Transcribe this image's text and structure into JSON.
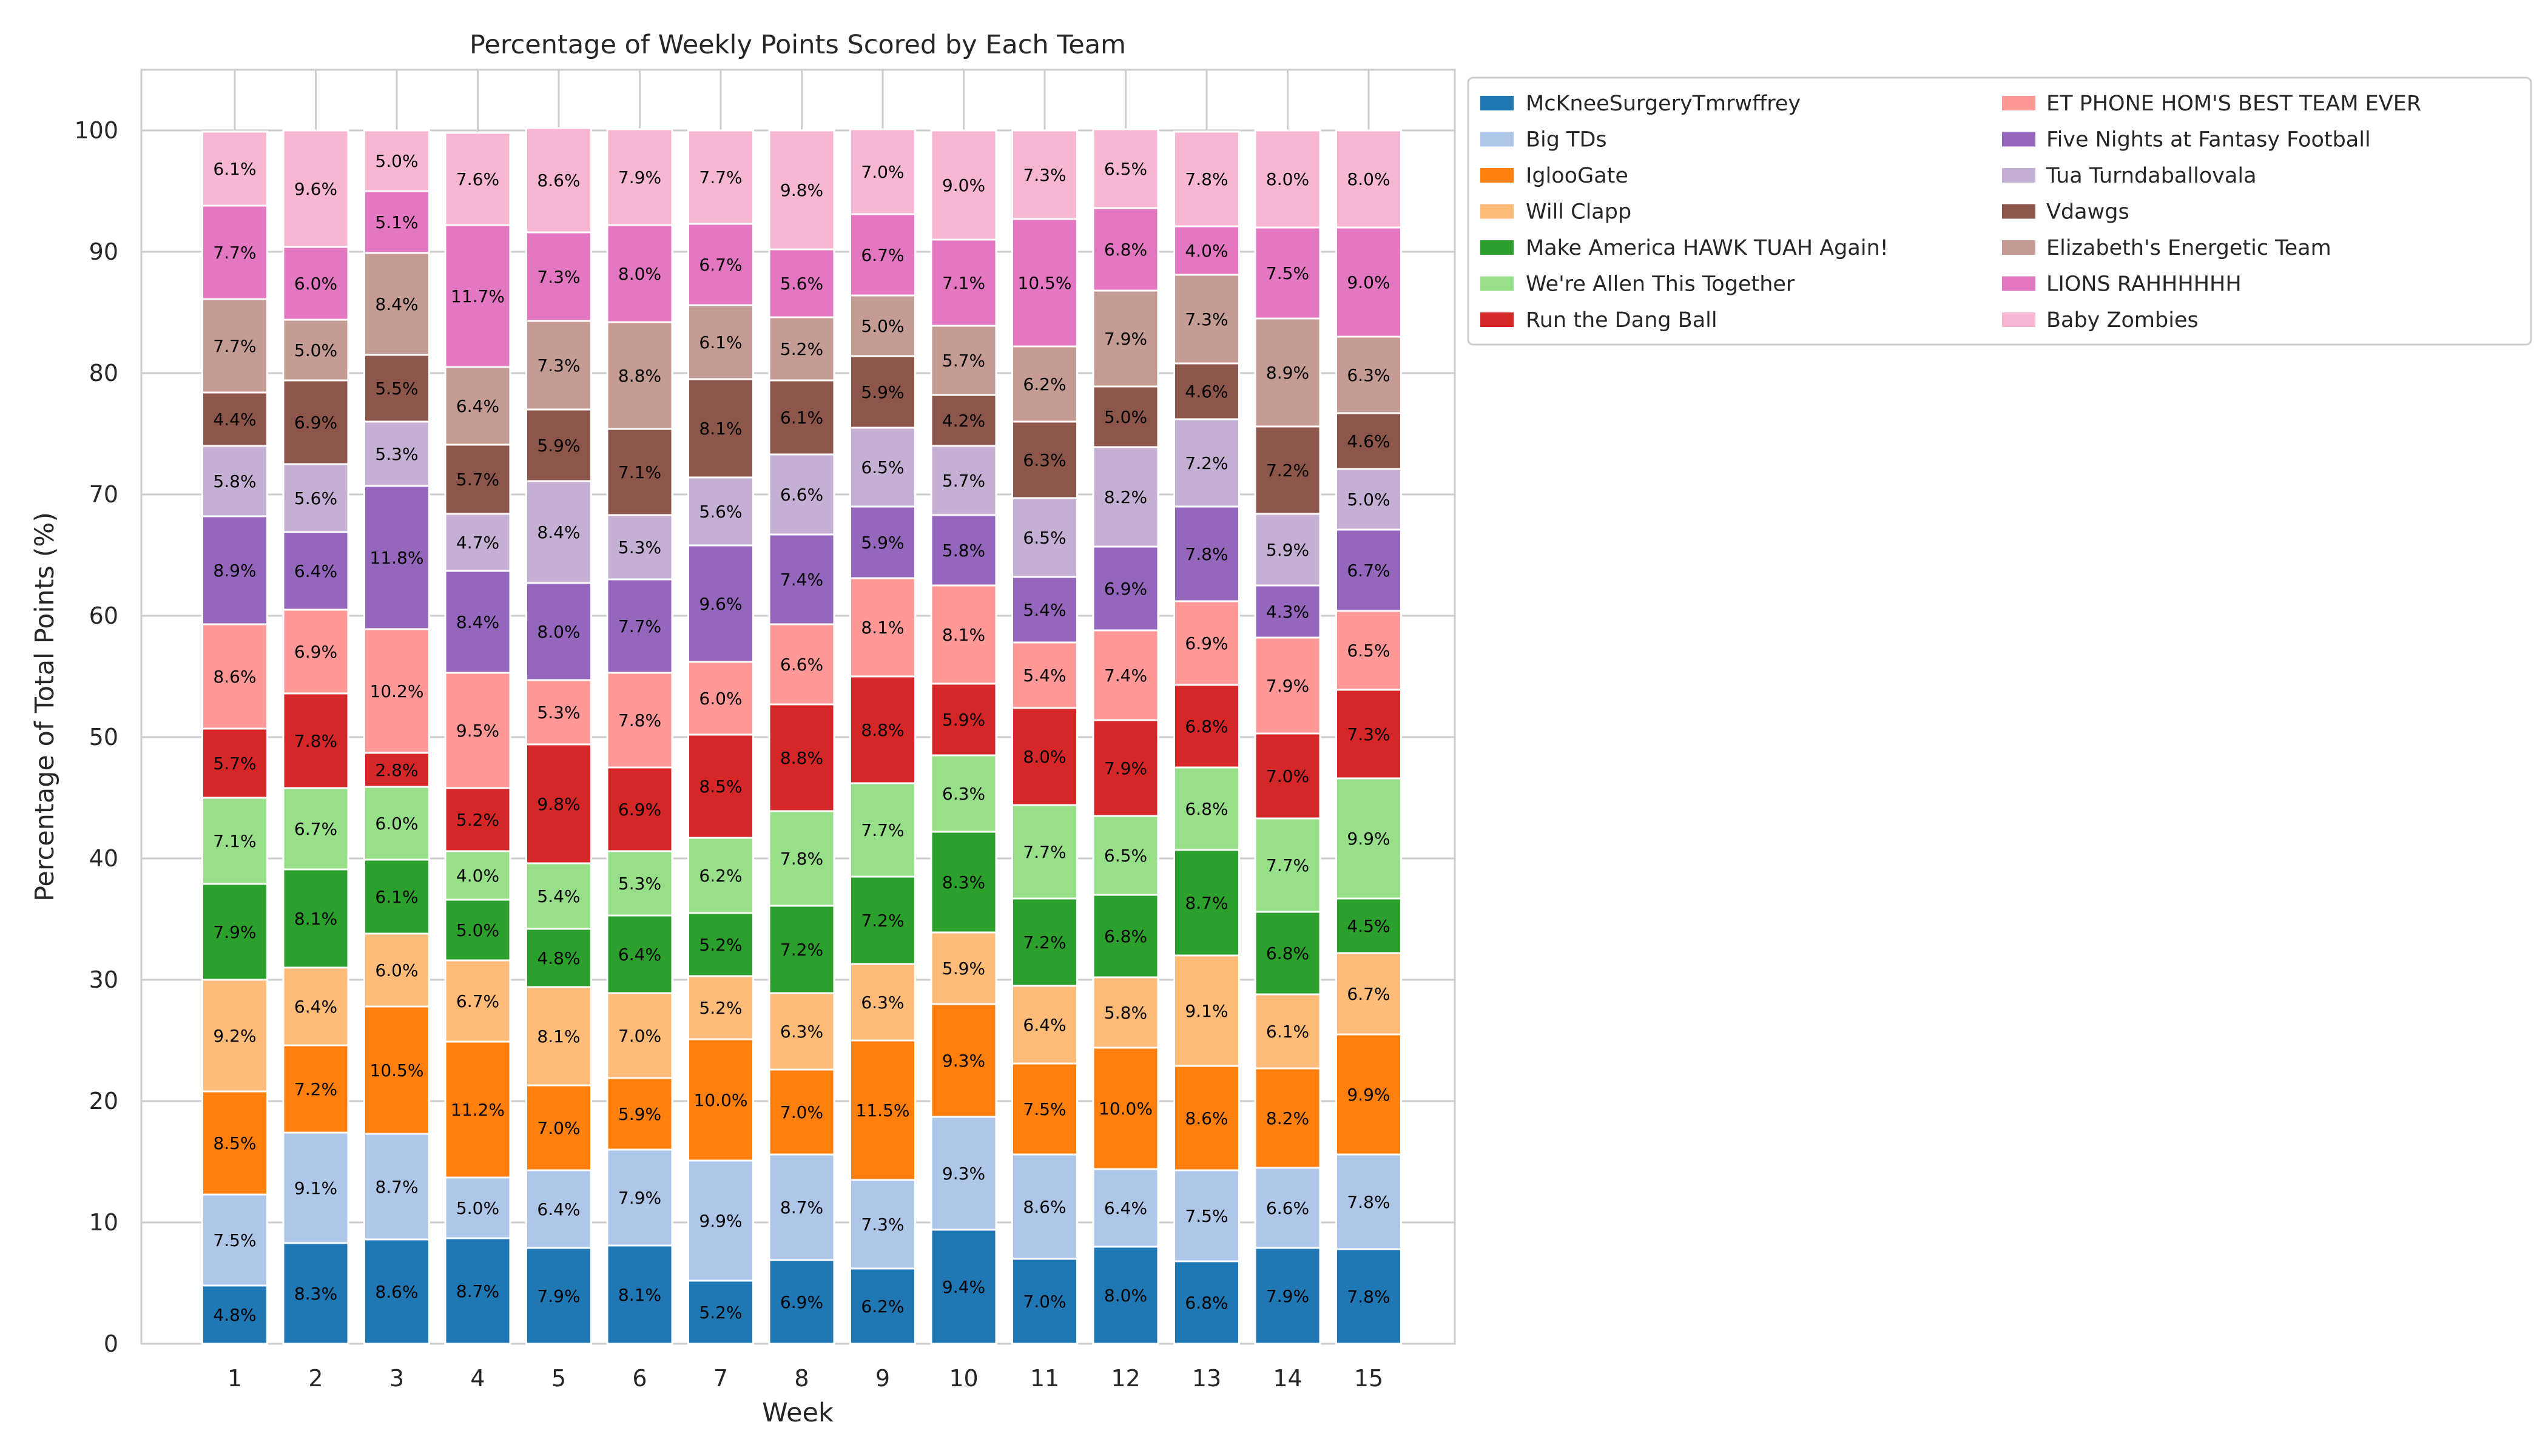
{
  "chart_data": {
    "type": "bar",
    "stacked": true,
    "title": "Percentage of Weekly Points Scored by Each Team",
    "xlabel": "Week",
    "ylabel": "Percentage of Total Points (%)",
    "ylim": [
      0,
      105
    ],
    "yticks": [
      0,
      10,
      20,
      30,
      40,
      50,
      60,
      70,
      80,
      90,
      100
    ],
    "grid": true,
    "legend_position": "outside-top-right",
    "categories": [
      "1",
      "2",
      "3",
      "4",
      "5",
      "6",
      "7",
      "8",
      "9",
      "10",
      "11",
      "12",
      "13",
      "14",
      "15"
    ],
    "series": [
      {
        "name": "McKneeSurgeryTmrwffrey",
        "color": "#1f77b4",
        "values": [
          4.8,
          8.3,
          8.6,
          8.7,
          7.9,
          8.1,
          5.2,
          6.9,
          6.2,
          9.4,
          7.0,
          8.0,
          6.8,
          7.9,
          7.8
        ]
      },
      {
        "name": "Big TDs",
        "color": "#aec7e8",
        "values": [
          7.5,
          9.1,
          8.7,
          5.0,
          6.4,
          7.9,
          9.9,
          8.7,
          7.3,
          9.3,
          8.6,
          6.4,
          7.5,
          6.6,
          7.8
        ]
      },
      {
        "name": "IglooGate",
        "color": "#ff7f0e",
        "values": [
          8.5,
          7.2,
          10.5,
          11.2,
          7.0,
          5.9,
          10.0,
          7.0,
          11.5,
          9.3,
          7.5,
          10.0,
          8.6,
          8.2,
          9.9
        ]
      },
      {
        "name": "Will Clapp",
        "color": "#ffbb78",
        "values": [
          9.2,
          6.4,
          6.0,
          6.7,
          8.1,
          7.0,
          5.2,
          6.3,
          6.3,
          5.9,
          6.4,
          5.8,
          9.1,
          6.1,
          6.7
        ]
      },
      {
        "name": "Make America HAWK TUAH Again!",
        "color": "#2ca02c",
        "values": [
          7.9,
          8.1,
          6.1,
          5.0,
          4.8,
          6.4,
          5.2,
          7.2,
          7.2,
          8.3,
          7.2,
          6.8,
          8.7,
          6.8,
          4.5
        ]
      },
      {
        "name": "We're Allen This Together",
        "color": "#98df8a",
        "values": [
          7.1,
          6.7,
          6.0,
          4.0,
          5.4,
          5.3,
          6.2,
          7.8,
          7.7,
          6.3,
          7.7,
          6.5,
          6.8,
          7.7,
          9.9
        ]
      },
      {
        "name": "Run the Dang Ball",
        "color": "#d62728",
        "values": [
          5.7,
          7.8,
          2.8,
          5.2,
          9.8,
          6.9,
          8.5,
          8.8,
          8.8,
          5.9,
          8.0,
          7.9,
          6.8,
          7.0,
          7.3
        ]
      },
      {
        "name": "ET PHONE HOM'S BEST TEAM EVER",
        "color": "#ff9896",
        "values": [
          8.6,
          6.9,
          10.2,
          9.5,
          5.3,
          7.8,
          6.0,
          6.6,
          8.1,
          8.1,
          5.4,
          7.4,
          6.9,
          7.9,
          6.5
        ]
      },
      {
        "name": "Five Nights at Fantasy Football",
        "color": "#9467bd",
        "values": [
          8.9,
          6.4,
          11.8,
          8.4,
          8.0,
          7.7,
          9.6,
          7.4,
          5.9,
          5.8,
          5.4,
          6.9,
          7.8,
          4.3,
          6.7
        ]
      },
      {
        "name": "Tua Turndaballovala",
        "color": "#c5b0d5",
        "values": [
          5.8,
          5.6,
          5.3,
          4.7,
          8.4,
          5.3,
          5.6,
          6.6,
          6.5,
          5.7,
          6.5,
          8.2,
          7.2,
          5.9,
          5.0
        ]
      },
      {
        "name": "Vdawgs",
        "color": "#8c564b",
        "values": [
          4.4,
          6.9,
          5.5,
          5.7,
          5.9,
          7.1,
          8.1,
          6.1,
          5.9,
          4.2,
          6.3,
          5.0,
          4.6,
          7.2,
          4.6
        ]
      },
      {
        "name": "Elizabeth's Energetic Team",
        "color": "#c49c94",
        "values": [
          7.7,
          5.0,
          8.4,
          6.4,
          7.3,
          8.8,
          6.1,
          5.2,
          5.0,
          5.7,
          6.2,
          7.9,
          7.3,
          8.9,
          6.3
        ]
      },
      {
        "name": "LIONS RAHHHHHH",
        "color": "#e377c2",
        "values": [
          7.7,
          6.0,
          5.1,
          11.7,
          7.3,
          8.0,
          6.7,
          5.6,
          6.7,
          7.1,
          10.5,
          6.8,
          4.0,
          7.5,
          9.0
        ]
      },
      {
        "name": "Baby Zombies",
        "color": "#f7b6d2",
        "values": [
          6.1,
          9.6,
          5.0,
          7.6,
          8.6,
          7.9,
          7.7,
          9.8,
          7.0,
          9.0,
          7.3,
          6.5,
          7.8,
          8.0,
          8.0
        ]
      }
    ]
  }
}
